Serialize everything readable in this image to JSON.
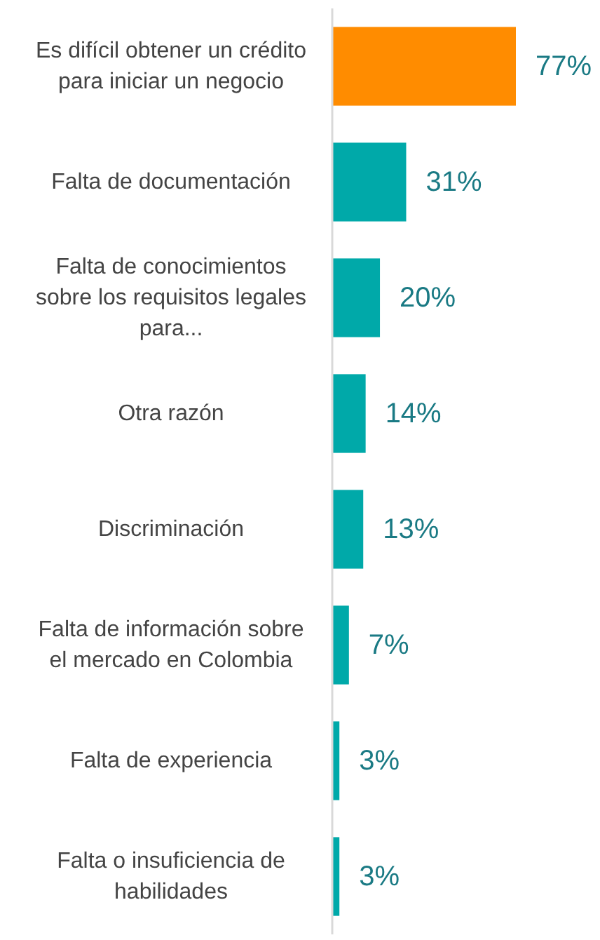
{
  "chart_data": {
    "type": "bar",
    "orientation": "horizontal",
    "categories": [
      "Es difícil obtener un crédito para iniciar un negocio",
      "Falta de documentación",
      "Falta de conocimientos sobre los requisitos legales para...",
      "Otra razón",
      "Discriminación",
      "Falta de información sobre el mercado en Colombia",
      "Falta de experiencia",
      "Falta o insuficiencia de habilidades"
    ],
    "values": [
      77,
      31,
      20,
      14,
      13,
      7,
      3,
      3
    ],
    "value_labels": [
      "77%",
      "31%",
      "20%",
      "14%",
      "13%",
      "7%",
      "3%",
      "3%"
    ],
    "colors": [
      "#ff8c00",
      "#00a9a9",
      "#00a9a9",
      "#00a9a9",
      "#00a9a9",
      "#00a9a9",
      "#00a9a9",
      "#00a9a9"
    ]
  }
}
